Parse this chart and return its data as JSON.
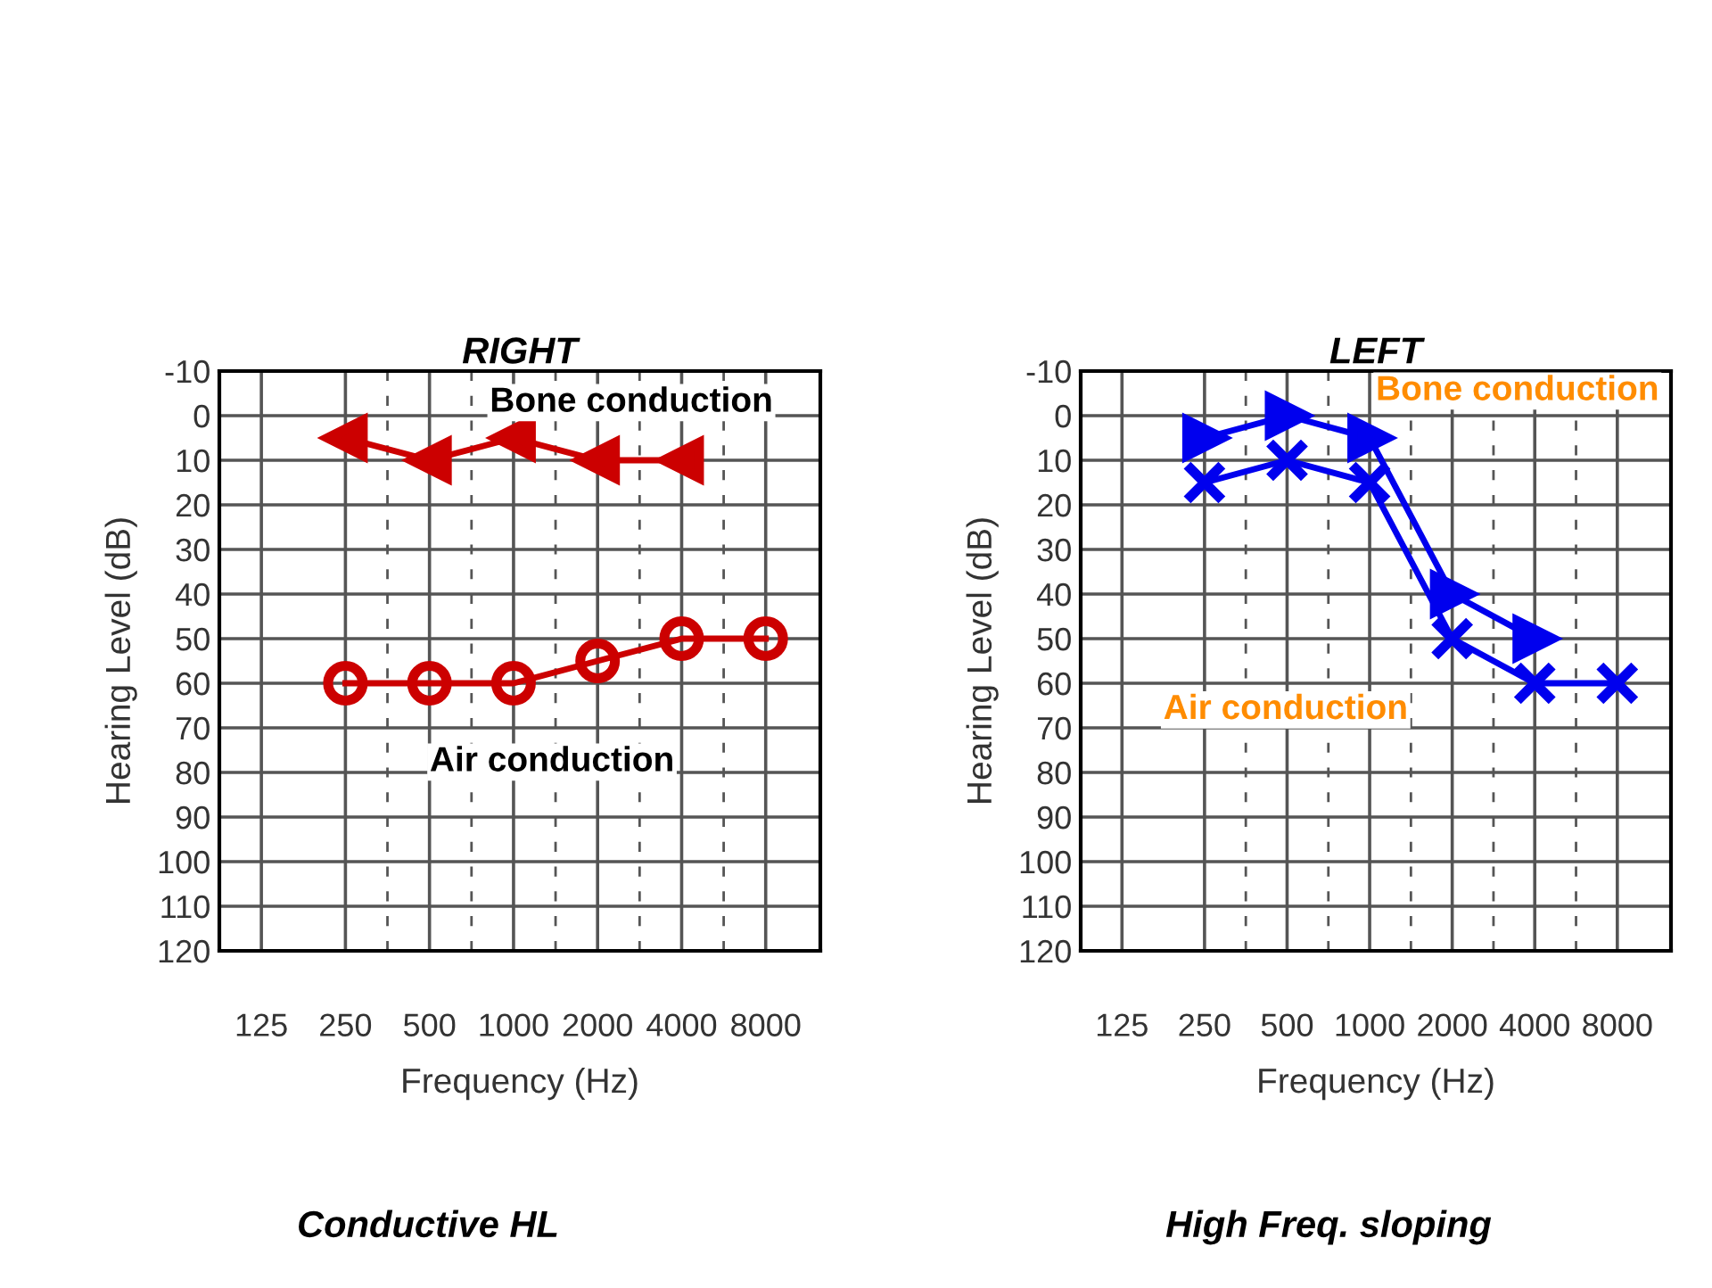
{
  "chart_data": [
    {
      "type": "line",
      "title": "RIGHT",
      "xlabel": "Frequency (Hz)",
      "ylabel": "Hearing Level (dB)",
      "categories": [
        "125",
        "250",
        "500",
        "1000",
        "2000",
        "4000",
        "8000"
      ],
      "ylim": [
        120,
        -10
      ],
      "yticks": [
        -10,
        0,
        10,
        20,
        30,
        40,
        50,
        60,
        70,
        80,
        90,
        100,
        110,
        120
      ],
      "grid": true,
      "series": [
        {
          "name": "Bone conduction",
          "color": "#cc0000",
          "marker": "triangle_left",
          "values": [
            null,
            5,
            10,
            5,
            10,
            10,
            null
          ]
        },
        {
          "name": "Air conduction",
          "color": "#cc0000",
          "marker": "circle",
          "values": [
            null,
            60,
            60,
            60,
            55,
            50,
            50
          ]
        }
      ],
      "annotations": [
        "Conductive HL"
      ]
    },
    {
      "type": "line",
      "title": "LEFT",
      "xlabel": "Frequency (Hz)",
      "ylabel": "Hearing Level (dB)",
      "categories": [
        "125",
        "250",
        "500",
        "1000",
        "2000",
        "4000",
        "8000"
      ],
      "ylim": [
        120,
        -10
      ],
      "yticks": [
        -10,
        0,
        10,
        20,
        30,
        40,
        50,
        60,
        70,
        80,
        90,
        100,
        110,
        120
      ],
      "grid": true,
      "series": [
        {
          "name": "Bone conduction",
          "color": "#0000ee",
          "marker": "triangle_right",
          "values": [
            null,
            5,
            0,
            5,
            40,
            50,
            null
          ]
        },
        {
          "name": "Air conduction",
          "color": "#0000ee",
          "marker": "cross",
          "values": [
            null,
            15,
            10,
            15,
            50,
            60,
            60
          ]
        }
      ],
      "annotations": [
        "High Freq. sloping"
      ]
    }
  ]
}
